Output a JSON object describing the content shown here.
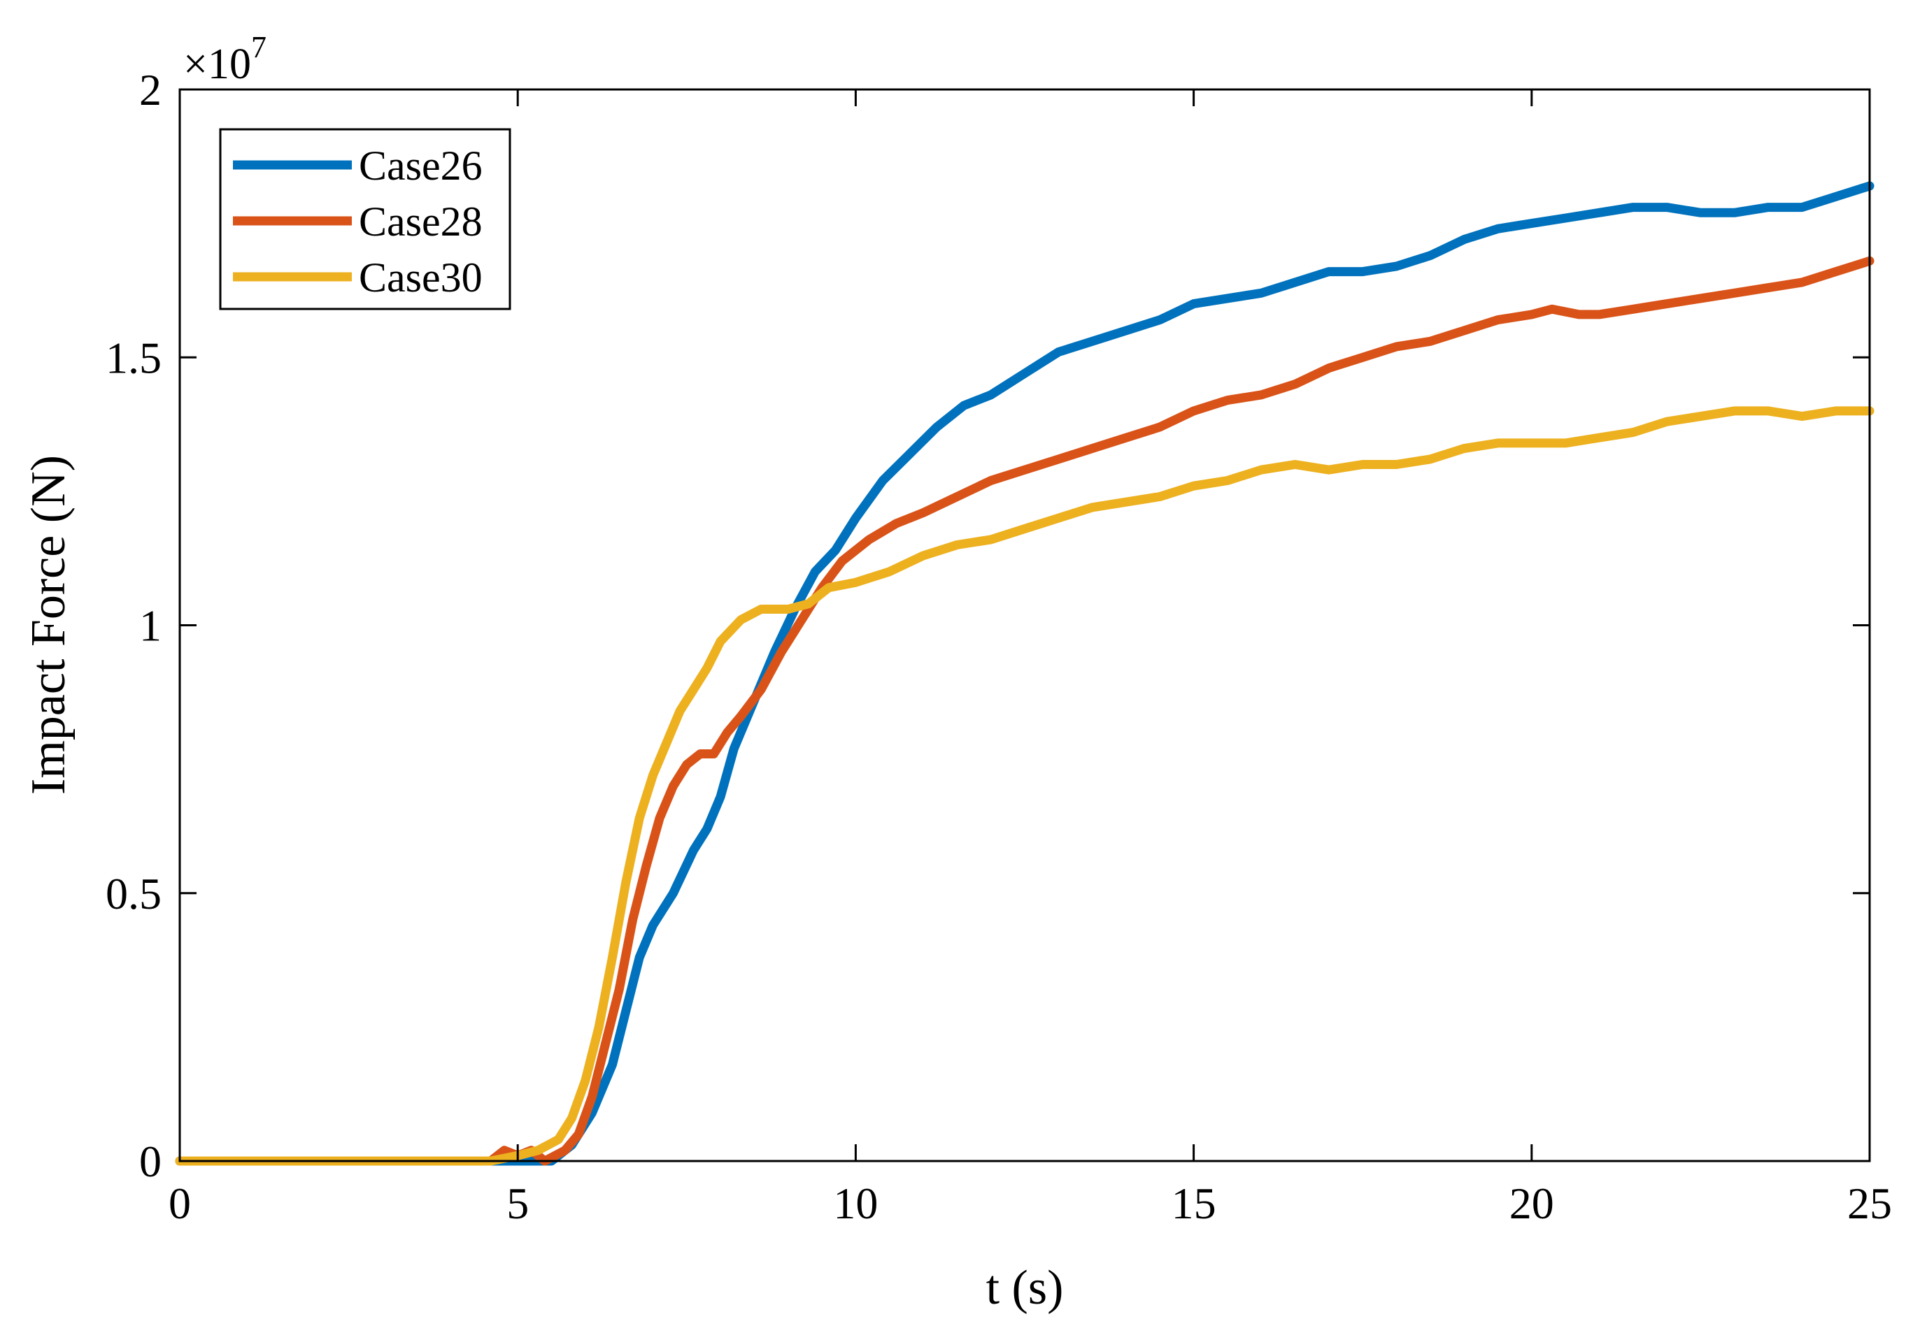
{
  "chart_data": {
    "type": "line",
    "title": "",
    "xlabel": "t (s)",
    "ylabel": "Impact Force (N)",
    "y_multiplier_label": "×10",
    "y_multiplier_exponent": "7",
    "xlim": [
      0,
      25
    ],
    "ylim": [
      0,
      2
    ],
    "xticks": [
      0,
      5,
      10,
      15,
      20,
      25
    ],
    "xtick_labels": [
      "0",
      "5",
      "10",
      "15",
      "20",
      "25"
    ],
    "yticks": [
      0,
      0.5,
      1,
      1.5,
      2
    ],
    "ytick_labels": [
      "0",
      "0.5",
      "1",
      "1.5",
      "2"
    ],
    "grid": false,
    "legend_position": "top-left",
    "series": [
      {
        "name": "Case26",
        "color": "#0072BD",
        "points": [
          [
            0,
            0
          ],
          [
            4.6,
            0
          ],
          [
            5.2,
            0
          ],
          [
            5.5,
            0
          ],
          [
            5.8,
            0.03
          ],
          [
            6.1,
            0.09
          ],
          [
            6.4,
            0.18
          ],
          [
            6.6,
            0.28
          ],
          [
            6.8,
            0.38
          ],
          [
            7.0,
            0.44
          ],
          [
            7.3,
            0.5
          ],
          [
            7.6,
            0.58
          ],
          [
            7.8,
            0.62
          ],
          [
            8.0,
            0.68
          ],
          [
            8.2,
            0.77
          ],
          [
            8.5,
            0.86
          ],
          [
            8.8,
            0.95
          ],
          [
            9.1,
            1.03
          ],
          [
            9.4,
            1.1
          ],
          [
            9.7,
            1.14
          ],
          [
            10.0,
            1.2
          ],
          [
            10.4,
            1.27
          ],
          [
            10.8,
            1.32
          ],
          [
            11.2,
            1.37
          ],
          [
            11.6,
            1.41
          ],
          [
            12.0,
            1.43
          ],
          [
            12.5,
            1.47
          ],
          [
            13.0,
            1.51
          ],
          [
            13.5,
            1.53
          ],
          [
            14.0,
            1.55
          ],
          [
            14.5,
            1.57
          ],
          [
            15.0,
            1.6
          ],
          [
            15.5,
            1.61
          ],
          [
            16.0,
            1.62
          ],
          [
            16.5,
            1.64
          ],
          [
            17.0,
            1.66
          ],
          [
            17.5,
            1.66
          ],
          [
            18.0,
            1.67
          ],
          [
            18.5,
            1.69
          ],
          [
            19.0,
            1.72
          ],
          [
            19.5,
            1.74
          ],
          [
            20.0,
            1.75
          ],
          [
            20.5,
            1.76
          ],
          [
            21.0,
            1.77
          ],
          [
            21.5,
            1.78
          ],
          [
            22.0,
            1.78
          ],
          [
            22.5,
            1.77
          ],
          [
            23.0,
            1.77
          ],
          [
            23.5,
            1.78
          ],
          [
            24.0,
            1.78
          ],
          [
            24.5,
            1.8
          ],
          [
            25.0,
            1.82
          ]
        ]
      },
      {
        "name": "Case28",
        "color": "#D95319",
        "points": [
          [
            0,
            0
          ],
          [
            4.6,
            0
          ],
          [
            4.8,
            0.02
          ],
          [
            5.0,
            0.01
          ],
          [
            5.2,
            0.02
          ],
          [
            5.4,
            0
          ],
          [
            5.7,
            0.02
          ],
          [
            5.9,
            0.05
          ],
          [
            6.1,
            0.12
          ],
          [
            6.3,
            0.22
          ],
          [
            6.5,
            0.32
          ],
          [
            6.7,
            0.45
          ],
          [
            6.9,
            0.55
          ],
          [
            7.1,
            0.64
          ],
          [
            7.3,
            0.7
          ],
          [
            7.5,
            0.74
          ],
          [
            7.7,
            0.76
          ],
          [
            7.9,
            0.76
          ],
          [
            8.1,
            0.8
          ],
          [
            8.3,
            0.83
          ],
          [
            8.6,
            0.88
          ],
          [
            8.9,
            0.95
          ],
          [
            9.2,
            1.01
          ],
          [
            9.5,
            1.07
          ],
          [
            9.8,
            1.12
          ],
          [
            10.2,
            1.16
          ],
          [
            10.6,
            1.19
          ],
          [
            11.0,
            1.21
          ],
          [
            11.5,
            1.24
          ],
          [
            12.0,
            1.27
          ],
          [
            12.5,
            1.29
          ],
          [
            13.0,
            1.31
          ],
          [
            13.5,
            1.33
          ],
          [
            14.0,
            1.35
          ],
          [
            14.5,
            1.37
          ],
          [
            15.0,
            1.4
          ],
          [
            15.5,
            1.42
          ],
          [
            16.0,
            1.43
          ],
          [
            16.5,
            1.45
          ],
          [
            17.0,
            1.48
          ],
          [
            17.5,
            1.5
          ],
          [
            18.0,
            1.52
          ],
          [
            18.5,
            1.53
          ],
          [
            19.0,
            1.55
          ],
          [
            19.5,
            1.57
          ],
          [
            20.0,
            1.58
          ],
          [
            20.3,
            1.59
          ],
          [
            20.7,
            1.58
          ],
          [
            21.0,
            1.58
          ],
          [
            21.5,
            1.59
          ],
          [
            22.0,
            1.6
          ],
          [
            22.5,
            1.61
          ],
          [
            23.0,
            1.62
          ],
          [
            23.5,
            1.63
          ],
          [
            24.0,
            1.64
          ],
          [
            24.5,
            1.66
          ],
          [
            25.0,
            1.68
          ]
        ]
      },
      {
        "name": "Case30",
        "color": "#EDB120",
        "points": [
          [
            0,
            0
          ],
          [
            4.6,
            0
          ],
          [
            5.0,
            0.01
          ],
          [
            5.3,
            0.02
          ],
          [
            5.6,
            0.04
          ],
          [
            5.8,
            0.08
          ],
          [
            6.0,
            0.15
          ],
          [
            6.2,
            0.25
          ],
          [
            6.4,
            0.38
          ],
          [
            6.6,
            0.52
          ],
          [
            6.8,
            0.64
          ],
          [
            7.0,
            0.72
          ],
          [
            7.2,
            0.78
          ],
          [
            7.4,
            0.84
          ],
          [
            7.6,
            0.88
          ],
          [
            7.8,
            0.92
          ],
          [
            8.0,
            0.97
          ],
          [
            8.3,
            1.01
          ],
          [
            8.6,
            1.03
          ],
          [
            9.0,
            1.03
          ],
          [
            9.3,
            1.04
          ],
          [
            9.6,
            1.07
          ],
          [
            10.0,
            1.08
          ],
          [
            10.5,
            1.1
          ],
          [
            11.0,
            1.13
          ],
          [
            11.5,
            1.15
          ],
          [
            12.0,
            1.16
          ],
          [
            12.5,
            1.18
          ],
          [
            13.0,
            1.2
          ],
          [
            13.5,
            1.22
          ],
          [
            14.0,
            1.23
          ],
          [
            14.5,
            1.24
          ],
          [
            15.0,
            1.26
          ],
          [
            15.5,
            1.27
          ],
          [
            16.0,
            1.29
          ],
          [
            16.5,
            1.3
          ],
          [
            17.0,
            1.29
          ],
          [
            17.5,
            1.3
          ],
          [
            18.0,
            1.3
          ],
          [
            18.5,
            1.31
          ],
          [
            19.0,
            1.33
          ],
          [
            19.5,
            1.34
          ],
          [
            20.0,
            1.34
          ],
          [
            20.5,
            1.34
          ],
          [
            21.0,
            1.35
          ],
          [
            21.5,
            1.36
          ],
          [
            22.0,
            1.38
          ],
          [
            22.5,
            1.39
          ],
          [
            23.0,
            1.4
          ],
          [
            23.5,
            1.4
          ],
          [
            24.0,
            1.39
          ],
          [
            24.5,
            1.4
          ],
          [
            25.0,
            1.4
          ]
        ]
      }
    ]
  }
}
